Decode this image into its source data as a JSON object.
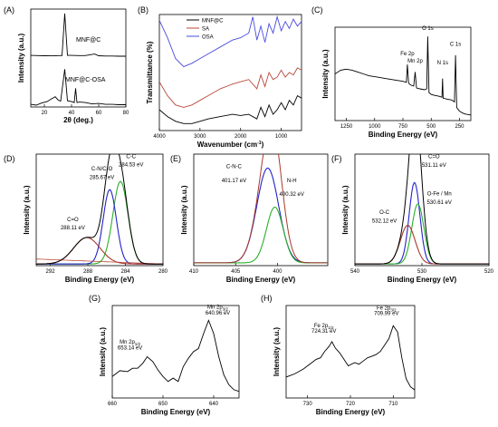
{
  "chart_data": [
    {
      "panel": "(A)",
      "type": "line",
      "xlabel": "2θ (deg.)",
      "ylabel": "Intensity (a.u.)",
      "xlim": [
        10,
        80
      ],
      "xticks": [
        20,
        40,
        60,
        80
      ],
      "series": [
        {
          "name": "MNF@C",
          "color": "#000000",
          "x": [
            10,
            15,
            20,
            25,
            28,
            30,
            33,
            35,
            37,
            40,
            45,
            50,
            57,
            60,
            65,
            70,
            75,
            80
          ],
          "y": [
            0.6,
            0.55,
            0.5,
            0.48,
            0.5,
            0.55,
            0.55,
            10,
            0.6,
            0.6,
            0.55,
            0.55,
            0.9,
            0.5,
            0.45,
            0.45,
            0.4,
            0.4
          ]
        },
        {
          "name": "MNF@C-OSA",
          "color": "#000000",
          "x": [
            10,
            14,
            18,
            22,
            25,
            28,
            30,
            32,
            35,
            37,
            40,
            42,
            43,
            44,
            46,
            50,
            55,
            60,
            65,
            70,
            75,
            80
          ],
          "y": [
            0.6,
            0.4,
            0.9,
            1.2,
            1.8,
            2.3,
            1.6,
            1.3,
            8.5,
            1.4,
            1.2,
            1.0,
            4.2,
            1.0,
            1.1,
            1.0,
            0.7,
            0.8,
            0.6,
            0.6,
            0.5,
            0.5
          ]
        }
      ]
    },
    {
      "panel": "(B)",
      "type": "line",
      "xlabel": "Wavenumber (cm",
      "xlabel_sup": "-1",
      "xlabel_end": ")",
      "ylabel": "Transmittance (%)",
      "xlim": [
        4000,
        500
      ],
      "xticks": [
        4000,
        3000,
        2000,
        1000
      ],
      "legend": "top-left",
      "series": [
        {
          "name": "MNF@C",
          "color": "#000000",
          "x": [
            4000,
            3800,
            3600,
            3400,
            3200,
            3000,
            2800,
            2500,
            2200,
            2000,
            1800,
            1600,
            1500,
            1400,
            1300,
            1200,
            1100,
            1000,
            900,
            800,
            700,
            600,
            500
          ],
          "y": [
            18,
            12,
            8,
            6,
            6,
            8,
            10,
            12,
            14,
            13,
            14,
            10,
            20,
            12,
            22,
            14,
            18,
            24,
            18,
            26,
            22,
            30,
            28
          ]
        },
        {
          "name": "SA",
          "color": "#b84a3a",
          "x": [
            4000,
            3800,
            3600,
            3400,
            3200,
            3000,
            2800,
            2500,
            2200,
            2000,
            1800,
            1600,
            1500,
            1400,
            1300,
            1200,
            1100,
            1000,
            900,
            800,
            700,
            600,
            500
          ],
          "y": [
            42,
            30,
            22,
            20,
            22,
            26,
            30,
            36,
            40,
            42,
            44,
            36,
            48,
            38,
            50,
            44,
            46,
            52,
            46,
            50,
            48,
            54,
            52
          ]
        },
        {
          "name": "OSA",
          "color": "#4a4adc",
          "x": [
            4000,
            3800,
            3600,
            3400,
            3200,
            3000,
            2800,
            2500,
            2200,
            2000,
            1800,
            1700,
            1600,
            1500,
            1400,
            1300,
            1200,
            1100,
            1000,
            900,
            800,
            700,
            600,
            500
          ],
          "y": [
            95,
            80,
            62,
            55,
            58,
            62,
            66,
            72,
            78,
            80,
            84,
            98,
            78,
            90,
            76,
            92,
            84,
            98,
            86,
            94,
            88,
            96,
            90,
            94
          ]
        }
      ]
    },
    {
      "panel": "(C)",
      "type": "line",
      "xlabel": "Binding Energy (eV)",
      "ylabel": "Intensity (a.u.)",
      "xlim": [
        1350,
        150
      ],
      "xticks": [
        1250,
        1000,
        750,
        500,
        250
      ],
      "annotations": [
        {
          "text": "O 1s",
          "x": 531,
          "y": 97
        },
        {
          "text": "Fe 2p",
          "x": 711,
          "y": 70
        },
        {
          "text": "Mn 2p",
          "x": 642,
          "y": 62
        },
        {
          "text": "N 1s",
          "x": 400,
          "y": 60
        },
        {
          "text": "C 1s",
          "x": 285,
          "y": 80
        }
      ],
      "series": [
        {
          "name": "",
          "color": "#000000",
          "x": [
            1350,
            1300,
            1250,
            1200,
            1150,
            1100,
            1050,
            1000,
            950,
            900,
            850,
            800,
            750,
            720,
            711,
            700,
            680,
            655,
            642,
            630,
            600,
            560,
            540,
            531,
            520,
            500,
            470,
            430,
            405,
            400,
            395,
            360,
            320,
            295,
            285,
            275,
            250,
            220,
            200,
            150
          ],
          "y": [
            50,
            54,
            55,
            54,
            52,
            50,
            48,
            47,
            46,
            45,
            44,
            43,
            42,
            41,
            60,
            40,
            38,
            37,
            52,
            35,
            34,
            33,
            34,
            90,
            30,
            28,
            27,
            26,
            25,
            45,
            24,
            23,
            22,
            20,
            70,
            14,
            10,
            8,
            7,
            6
          ]
        }
      ]
    },
    {
      "panel": "(D)",
      "type": "line",
      "xlabel": "Binding Energy (eV)",
      "ylabel": "Intensity (a.u.)",
      "xlim": [
        293.5,
        280
      ],
      "xticks": [
        292,
        288,
        284,
        280
      ],
      "annotations": [
        {
          "text": "C-N/C-O",
          "x": 286.5,
          "y": 1.15
        },
        {
          "text": "285.67 eV",
          "x": 286.5,
          "y": 1.05
        },
        {
          "text": "C-C",
          "x": 283.4,
          "y": 1.3
        },
        {
          "text": "284.53 eV",
          "x": 283.4,
          "y": 1.2
        },
        {
          "text": "C=O",
          "x": 289.6,
          "y": 0.54
        },
        {
          "text": "288.11 eV",
          "x": 289.6,
          "y": 0.44
        }
      ],
      "peaks": [
        {
          "name": "C-C",
          "color": "#2bb02b",
          "center": 284.53,
          "height": 1.0,
          "width": 0.8
        },
        {
          "name": "C-N/C-O",
          "color": "#2222cc",
          "center": 285.67,
          "height": 0.9,
          "width": 0.7
        },
        {
          "name": "C=O",
          "color": "#a83a2a",
          "center": 288.11,
          "height": 0.32,
          "width": 1.4
        }
      ],
      "envelope_color": "#000000",
      "background_color": "#b84a3a"
    },
    {
      "panel": "(E)",
      "type": "line",
      "xlabel": "Binding Energy (eV)",
      "ylabel": "Intensity (a.u.)",
      "xlim": [
        410,
        394
      ],
      "xticks": [
        410,
        405,
        400
      ],
      "annotations": [
        {
          "text": "C-N-C",
          "x": 405.2,
          "y": 0.7
        },
        {
          "text": "401.17 eV",
          "x": 405.2,
          "y": 0.6
        },
        {
          "text": "N-H",
          "x": 398.3,
          "y": 0.6
        },
        {
          "text": "400.32 eV",
          "x": 398.3,
          "y": 0.5
        }
      ],
      "peaks": [
        {
          "name": "C-N-C",
          "color": "#2222cc",
          "center": 401.17,
          "height": 0.68,
          "width": 1.3
        },
        {
          "name": "N-H",
          "color": "#2bb02b",
          "center": 400.32,
          "height": 0.4,
          "width": 1.0
        }
      ],
      "envelope_color": "#a83a2a"
    },
    {
      "panel": "(F)",
      "type": "line",
      "xlabel": "Binding Energy (eV)",
      "ylabel": "Intensity (a.u.)",
      "xlim": [
        540,
        520
      ],
      "xticks": [
        540,
        530,
        520
      ],
      "annotations": [
        {
          "text": "C=O",
          "x": 528.2,
          "y": 1.25
        },
        {
          "text": "531.11 eV",
          "x": 528.2,
          "y": 1.15
        },
        {
          "text": "O-Fe / Mn",
          "x": 527.4,
          "y": 0.82
        },
        {
          "text": "530.61 eV",
          "x": 527.4,
          "y": 0.72
        },
        {
          "text": "O-C",
          "x": 535.6,
          "y": 0.6
        },
        {
          "text": "532.12 eV",
          "x": 535.6,
          "y": 0.5
        }
      ],
      "peaks": [
        {
          "name": "C=O",
          "color": "#2222cc",
          "center": 531.11,
          "height": 0.95,
          "width": 0.8
        },
        {
          "name": "O-Fe / Mn",
          "color": "#2bb02b",
          "center": 530.61,
          "height": 0.7,
          "width": 0.9
        },
        {
          "name": "O-C",
          "color": "#a83a2a",
          "center": 532.12,
          "height": 0.45,
          "width": 1.1
        }
      ],
      "envelope_color": "#000000"
    },
    {
      "panel": "(G)",
      "type": "line",
      "xlabel": "Binding Energy (eV)",
      "ylabel": "Intensity (a.u.)",
      "xlim": [
        660,
        635
      ],
      "xticks": [
        660,
        650,
        640
      ],
      "annotations": [
        {
          "text": "Mn 2p",
          "sub": "1/2",
          "x": 656.5,
          "y": 0.66
        },
        {
          "text": "653.14 eV",
          "x": 656.5,
          "y": 0.59
        },
        {
          "text": "Mn 2p",
          "sub": "3/2",
          "x": 639.2,
          "y": 1.08
        },
        {
          "text": "640.96 eV",
          "x": 639.2,
          "y": 1.01
        }
      ],
      "series": [
        {
          "name": "",
          "color": "#000000",
          "x": [
            660,
            658.5,
            657,
            656,
            655,
            654,
            653.1,
            652,
            651,
            650,
            649,
            648,
            647,
            646,
            645,
            644,
            643,
            642,
            641,
            640,
            639,
            638,
            637,
            636,
            635
          ],
          "y": [
            0.26,
            0.33,
            0.32,
            0.36,
            0.36,
            0.42,
            0.5,
            0.44,
            0.34,
            0.26,
            0.2,
            0.24,
            0.2,
            0.38,
            0.48,
            0.56,
            0.6,
            0.78,
            0.94,
            0.78,
            0.5,
            0.28,
            0.16,
            0.1,
            0.08
          ]
        }
      ]
    },
    {
      "panel": "(H)",
      "type": "line",
      "xlabel": "Binding Energy (eV)",
      "ylabel": "Intensity (a.u.)",
      "xlim": [
        735,
        705
      ],
      "xticks": [
        730,
        720,
        710
      ],
      "annotations": [
        {
          "text": "Fe 2p",
          "sub": "1/2",
          "x": 726.2,
          "y": 0.88
        },
        {
          "text": "724.31 eV",
          "x": 726.2,
          "y": 0.81
        },
        {
          "text": "Fe 2p",
          "sub": "3/2",
          "x": 711.6,
          "y": 1.1
        },
        {
          "text": "709.99 eV",
          "x": 711.6,
          "y": 1.03
        }
      ],
      "series": [
        {
          "name": "",
          "color": "#000000",
          "x": [
            735,
            733,
            731,
            729,
            728,
            727,
            726,
            725,
            724.3,
            723.5,
            722.5,
            721.5,
            720.5,
            719,
            718,
            717,
            716,
            715,
            714,
            713,
            712,
            711,
            710,
            709,
            708,
            707,
            706,
            705
          ],
          "y": [
            0.26,
            0.3,
            0.36,
            0.44,
            0.48,
            0.5,
            0.58,
            0.64,
            0.7,
            0.62,
            0.56,
            0.48,
            0.4,
            0.44,
            0.42,
            0.46,
            0.5,
            0.52,
            0.54,
            0.58,
            0.66,
            0.74,
            0.9,
            0.82,
            0.5,
            0.24,
            0.14,
            0.1
          ]
        }
      ]
    }
  ]
}
